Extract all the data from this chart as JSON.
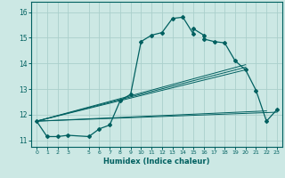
{
  "xlabel": "Humidex (Indice chaleur)",
  "bg_color": "#cce8e4",
  "line_color": "#006060",
  "grid_color": "#aacfcb",
  "xlim": [
    -0.5,
    23.5
  ],
  "ylim": [
    10.75,
    16.4
  ],
  "xticks": [
    0,
    1,
    2,
    3,
    5,
    6,
    7,
    8,
    9,
    10,
    11,
    12,
    13,
    14,
    15,
    16,
    17,
    18,
    19,
    20,
    21,
    22,
    23
  ],
  "yticks": [
    11,
    12,
    13,
    14,
    15,
    16
  ],
  "main_x": [
    0,
    1,
    2,
    3,
    5,
    6,
    7,
    8,
    9,
    10,
    11,
    12,
    13,
    14,
    15,
    15,
    16,
    16,
    17,
    18,
    19,
    20,
    21,
    22,
    23
  ],
  "main_y": [
    11.75,
    11.15,
    11.15,
    11.2,
    11.15,
    11.45,
    11.6,
    12.55,
    12.8,
    14.85,
    15.1,
    15.2,
    15.75,
    15.8,
    15.15,
    15.35,
    15.1,
    14.95,
    14.85,
    14.8,
    14.1,
    13.75,
    12.95,
    11.75,
    12.2
  ],
  "fan_lines": [
    {
      "x": [
        0,
        23
      ],
      "y": [
        11.75,
        12.1
      ]
    },
    {
      "x": [
        0,
        22
      ],
      "y": [
        11.75,
        12.15
      ]
    },
    {
      "x": [
        0,
        20
      ],
      "y": [
        11.75,
        13.75
      ]
    },
    {
      "x": [
        0,
        20
      ],
      "y": [
        11.75,
        13.85
      ]
    },
    {
      "x": [
        0,
        20
      ],
      "y": [
        11.75,
        13.95
      ]
    }
  ]
}
